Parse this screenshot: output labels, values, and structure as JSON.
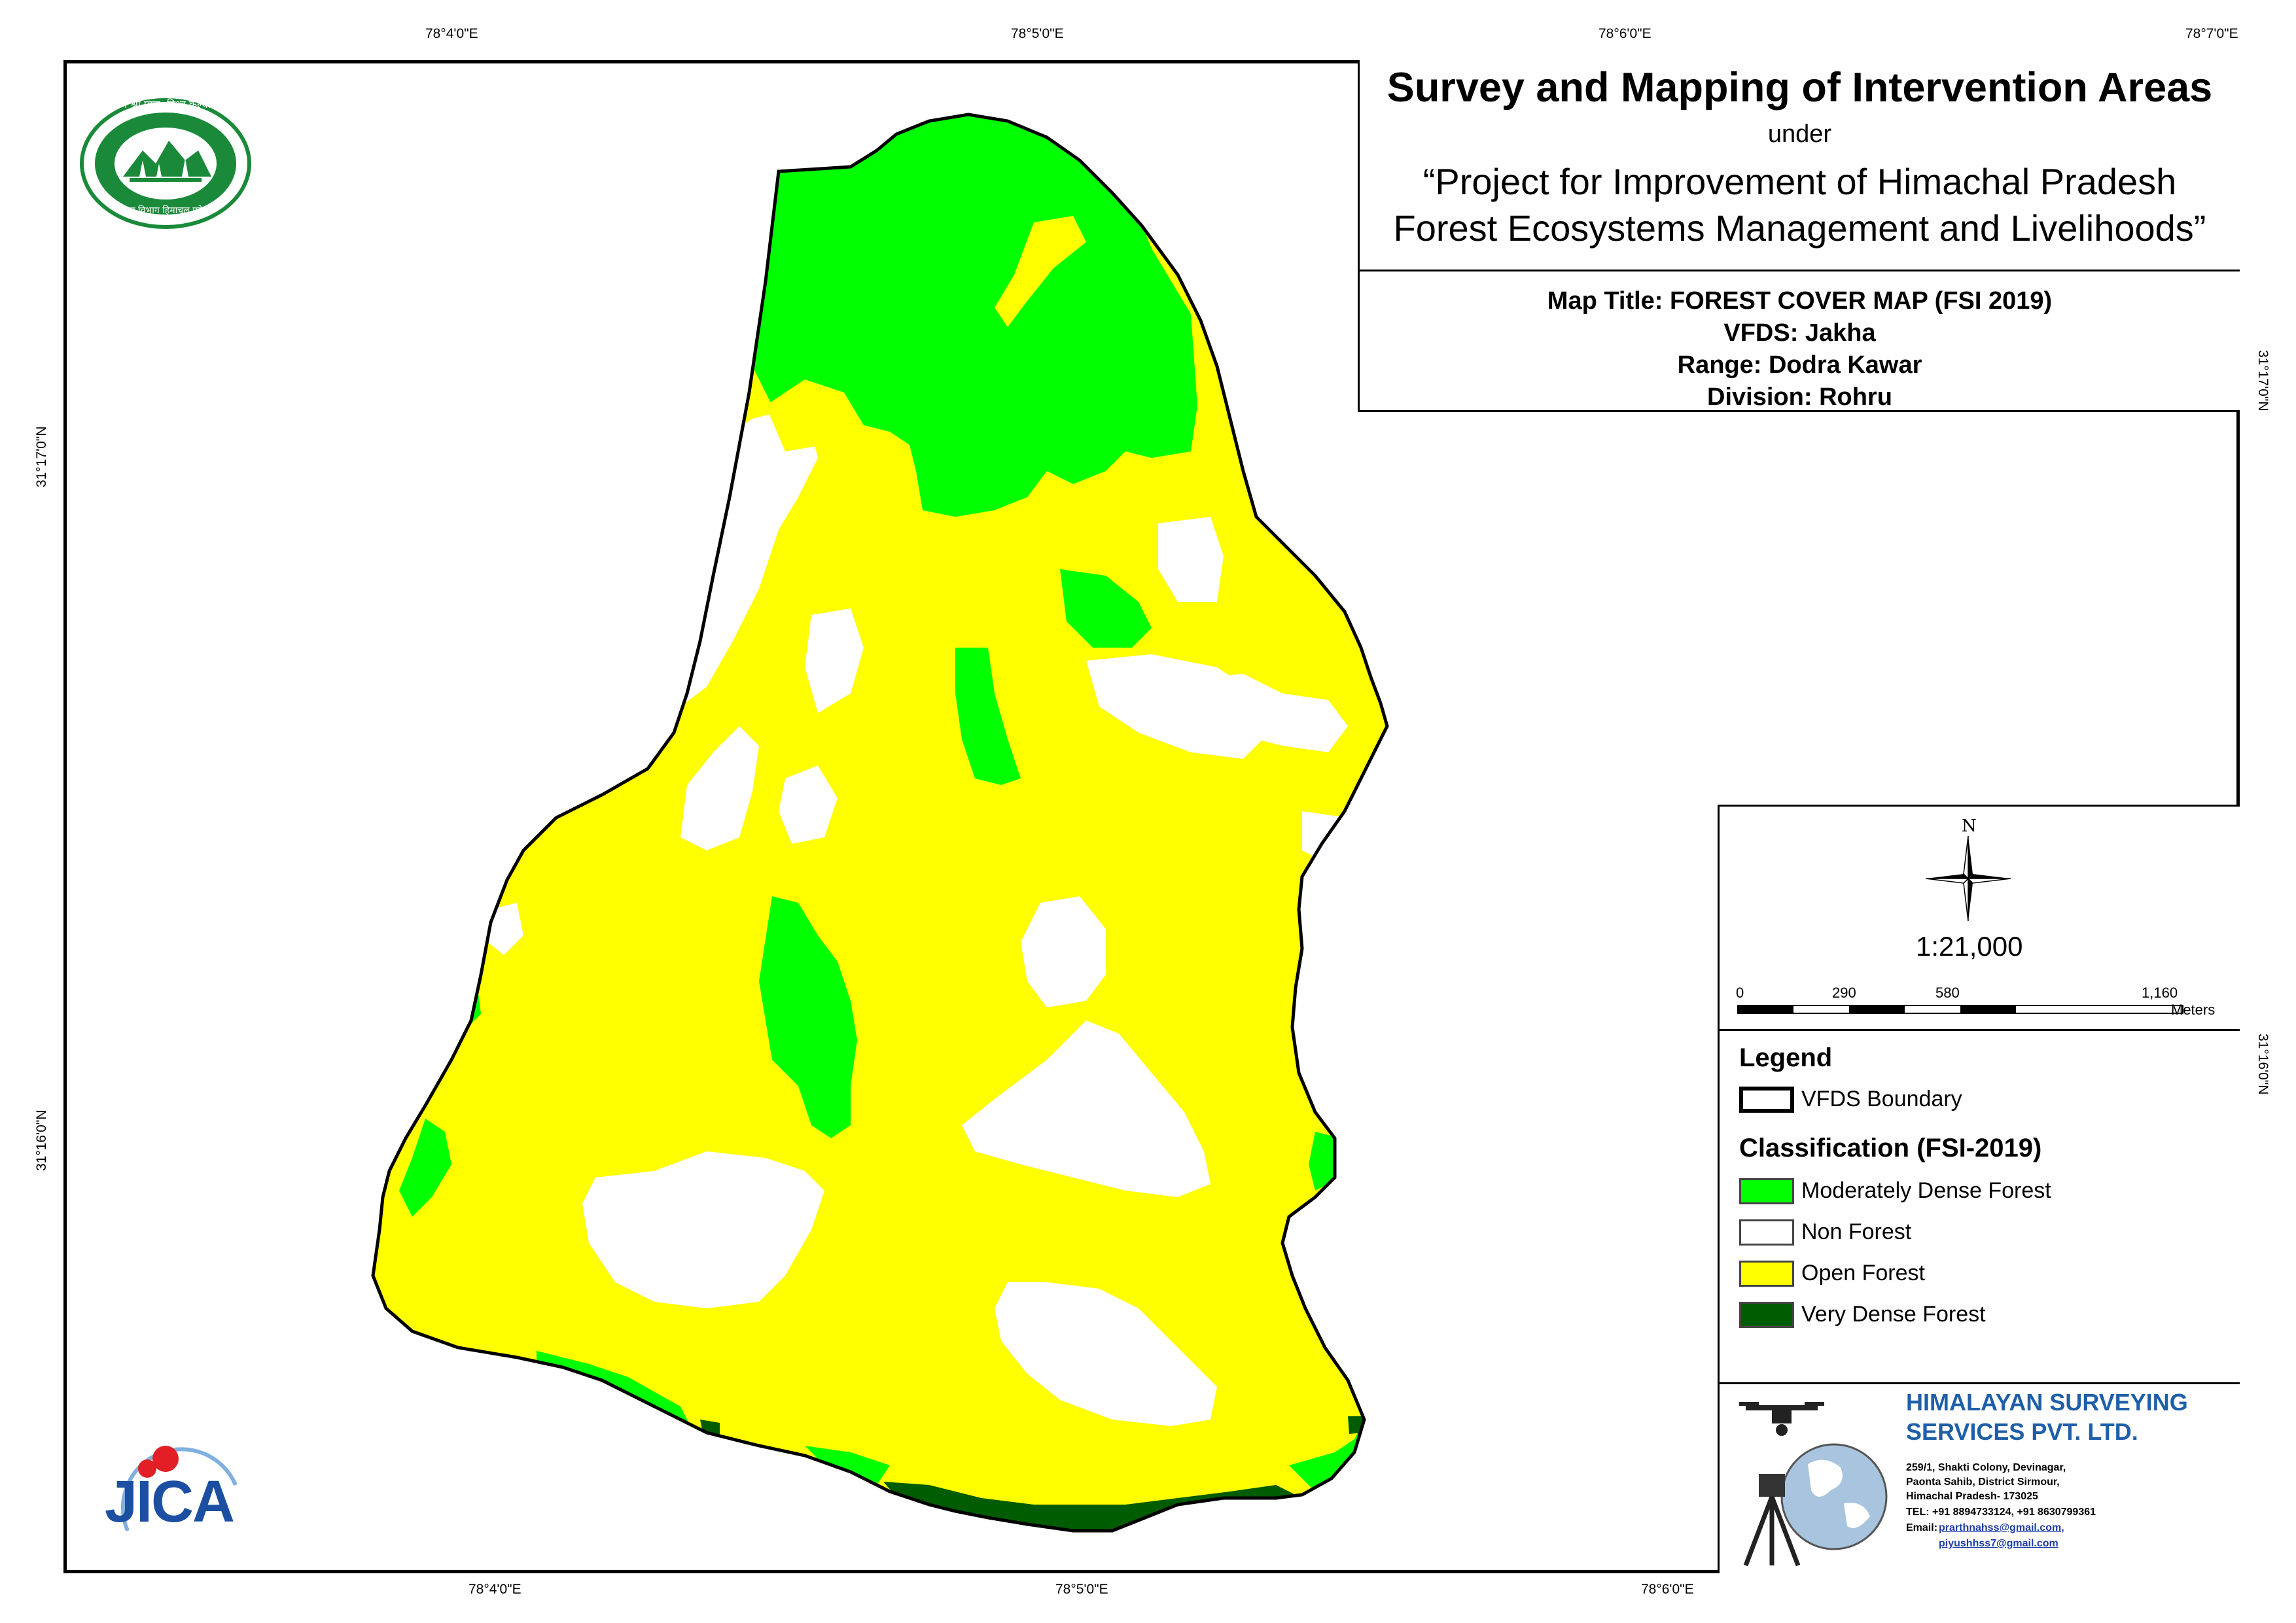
{
  "header": {
    "title": "Survey and Mapping of Intervention Areas",
    "under": "under",
    "project_line1": "“Project for Improvement of Himachal Pradesh",
    "project_line2": "Forest Ecosystems Management and Livelihoods”"
  },
  "map_info": {
    "map_title": "Map Title: FOREST COVER MAP (FSI 2019)",
    "vfds": "VFDS: Jakha",
    "range": "Range: Dodra Kawar",
    "division": "Division: Rohru"
  },
  "grid": {
    "top_labels": [
      "78°4'0\"E",
      "78°5'0\"E",
      "78°6'0\"E",
      "78°7'0\"E"
    ],
    "bottom_labels": [
      "78°4'0\"E",
      "78°5'0\"E",
      "78°6'0\"E"
    ],
    "left_labels": [
      "31°17'0\"N",
      "31°16'0\"N"
    ],
    "right_labels": [
      "31°17'0\"N",
      "31°16'0\"N"
    ]
  },
  "north_arrow": {
    "label": "N",
    "icon": "compass-rose-icon"
  },
  "scale": {
    "ratio": "1:21,000",
    "ticks": [
      "0",
      "290",
      "580",
      "1,160"
    ],
    "unit": "Meters"
  },
  "legend": {
    "title": "Legend",
    "boundary_label": "VFDS Boundary",
    "classification_title": "Classification (FSI-2019)",
    "classes": [
      {
        "label": "Moderately Dense Forest",
        "color": "#00ff00"
      },
      {
        "label": "Non Forest",
        "color": "#ffffff"
      },
      {
        "label": "Open Forest",
        "color": "#ffff00"
      },
      {
        "label": "Very Dense Forest",
        "color": "#005c00"
      }
    ]
  },
  "company": {
    "name_line1": "HIMALAYAN SURVEYING",
    "name_line2": "SERVICES PVT. LTD.",
    "address_line1": "259/1, Shakti Colony, Devinagar,",
    "address_line2": "Paonta Sahib, District Sirmour,",
    "address_line3": "Himachal Pradesh- 173025",
    "tel": "TEL: +91 8894733124, +91 8630799361",
    "email_label": "Email:",
    "email1": "prarthnahss@gmail.com,",
    "email2": "piyushhss7@gmail.com",
    "name_color": "#1f5fa8"
  },
  "logos": {
    "forest_dept_top": "वन श्री प्राण, विश्व कल्याण",
    "forest_dept_bottom": "वन विभाग हिमाचल प्रदेश",
    "jica": "JICA"
  }
}
